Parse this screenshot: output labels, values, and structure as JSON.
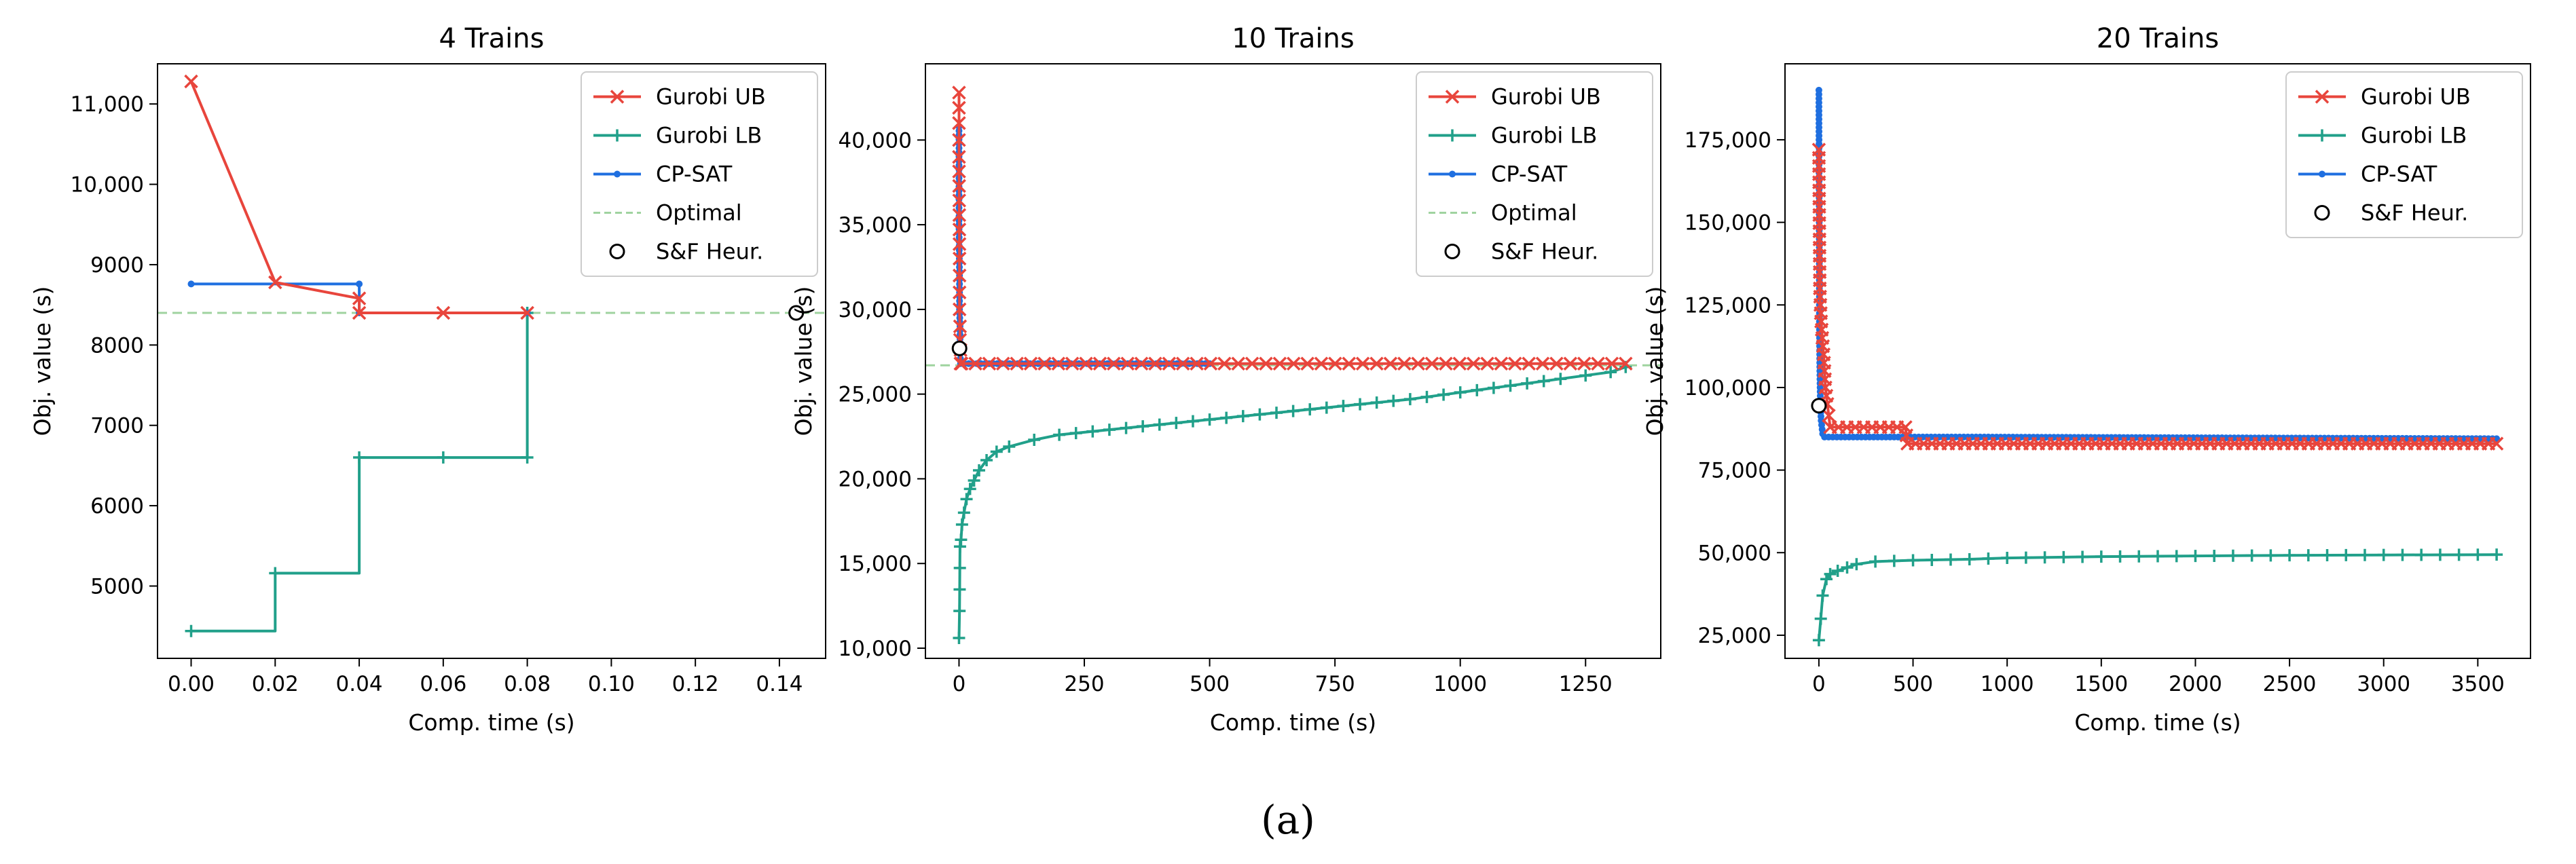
{
  "caption": "(a)",
  "colors": {
    "gurobi_ub": "#e8453c",
    "gurobi_lb": "#21a08a",
    "cp_sat": "#1f6fe0",
    "optimal": "#9fd39f",
    "sf_heur": "#000000"
  },
  "chart_data": [
    {
      "type": "line",
      "title": "4 Trains",
      "xlabel": "Comp. time (s)",
      "ylabel": "Obj. value (s)",
      "xlim": [
        -0.008,
        0.151
      ],
      "ylim": [
        4100,
        11500
      ],
      "xticks": [
        0.0,
        0.02,
        0.04,
        0.06,
        0.08,
        0.1,
        0.12,
        0.14
      ],
      "xtick_labels": [
        "0.00",
        "0.02",
        "0.04",
        "0.06",
        "0.08",
        "0.10",
        "0.12",
        "0.14"
      ],
      "yticks": [
        5000,
        6000,
        7000,
        8000,
        9000,
        10000,
        11000
      ],
      "ytick_labels": [
        "5000",
        "6000",
        "7000",
        "8000",
        "9000",
        "10,000",
        "11,000"
      ],
      "legend": [
        "Gurobi UB",
        "Gurobi LB",
        "CP-SAT",
        "Optimal",
        "S&F Heur."
      ],
      "series": [
        {
          "name": "Gurobi UB",
          "marker": "x",
          "step": false,
          "x": [
            0.0,
            0.02,
            0.04,
            0.04,
            0.06,
            0.08
          ],
          "y": [
            11280,
            8780,
            8580,
            8400,
            8400,
            8400
          ]
        },
        {
          "name": "Gurobi LB",
          "marker": "+",
          "step": true,
          "x": [
            0.0,
            0.02,
            0.04,
            0.06,
            0.08,
            0.08
          ],
          "y": [
            4440,
            5160,
            6600,
            6600,
            6600,
            8400
          ]
        },
        {
          "name": "CP-SAT",
          "marker": ".",
          "step": true,
          "x": [
            0.0,
            0.04,
            0.04,
            0.08
          ],
          "y": [
            8760,
            8760,
            8400,
            8400
          ]
        }
      ],
      "optimal": 8400,
      "heuristic": {
        "x": 0.144,
        "y": 8400
      }
    },
    {
      "type": "line",
      "title": "10 Trains",
      "xlabel": "Comp. time (s)",
      "ylabel": "Obj. value (s)",
      "xlim": [
        -67,
        1400
      ],
      "ylim": [
        9400,
        44500
      ],
      "xticks": [
        0,
        250,
        500,
        750,
        1000,
        1250
      ],
      "xtick_labels": [
        "0",
        "250",
        "500",
        "750",
        "1000",
        "1250"
      ],
      "yticks": [
        10000,
        15000,
        20000,
        25000,
        30000,
        35000,
        40000
      ],
      "ytick_labels": [
        "10,000",
        "15,000",
        "20,000",
        "25,000",
        "30,000",
        "35,000",
        "40,000"
      ],
      "legend": [
        "Gurobi UB",
        "Gurobi LB",
        "CP-SAT",
        "Optimal",
        "S&F Heur."
      ],
      "series": [
        {
          "name": "Gurobi UB",
          "marker": "x",
          "step": false,
          "markevery": 20,
          "x": [
            0,
            0,
            0,
            1,
            1,
            2,
            2,
            3,
            3,
            5,
            1330
          ],
          "y": [
            42800,
            41000,
            39000,
            33000,
            30000,
            29000,
            28200,
            27600,
            26800,
            26800,
            26800
          ]
        },
        {
          "name": "Gurobi LB",
          "marker": "+",
          "step": false,
          "markevery": 24,
          "x": [
            0,
            1,
            2,
            4,
            6,
            10,
            15,
            22,
            30,
            40,
            55,
            75,
            100,
            150,
            200,
            300,
            400,
            500,
            600,
            700,
            800,
            900,
            1000,
            1100,
            1200,
            1250,
            1300,
            1330
          ],
          "y": [
            10600,
            12200,
            16000,
            16400,
            17300,
            18000,
            18800,
            19400,
            19900,
            20500,
            21100,
            21600,
            21900,
            22300,
            22600,
            22900,
            23200,
            23500,
            23800,
            24100,
            24400,
            24700,
            25100,
            25500,
            25900,
            26100,
            26300,
            26600
          ]
        },
        {
          "name": "CP-SAT",
          "marker": ".",
          "step": false,
          "markevery": 6,
          "x": [
            0,
            0,
            0,
            1,
            1,
            2,
            2,
            3,
            500
          ],
          "y": [
            40800,
            38000,
            35000,
            32000,
            30000,
            29000,
            28000,
            26800,
            26800
          ]
        }
      ],
      "optimal": 26700,
      "heuristic": {
        "x": 1,
        "y": 27700
      }
    },
    {
      "type": "line",
      "title": "20 Trains",
      "xlabel": "Comp. time (s)",
      "ylabel": "Obj. value (s)",
      "xlim": [
        -180,
        3780
      ],
      "ylim": [
        18000,
        198000
      ],
      "xticks": [
        0,
        500,
        1000,
        1500,
        2000,
        2500,
        3000,
        3500
      ],
      "xtick_labels": [
        "0",
        "500",
        "1000",
        "1500",
        "2000",
        "2500",
        "3000",
        "3500"
      ],
      "yticks": [
        25000,
        50000,
        75000,
        100000,
        125000,
        150000,
        175000
      ],
      "ytick_labels": [
        "25,000",
        "50,000",
        "75,000",
        "100,000",
        "125,000",
        "150,000",
        "175,000"
      ],
      "legend": [
        "Gurobi UB",
        "Gurobi LB",
        "CP-SAT",
        "S&F Heur."
      ],
      "series": [
        {
          "name": "Gurobi UB",
          "marker": "x",
          "step": false,
          "markevery": 12,
          "x": [
            0,
            5,
            8,
            12,
            18,
            25,
            35,
            45,
            60,
            460,
            470,
            3600
          ],
          "y": [
            172000,
            130000,
            125000,
            120000,
            115000,
            110000,
            100000,
            95000,
            88000,
            88000,
            83000,
            83000
          ]
        },
        {
          "name": "Gurobi LB",
          "marker": "+",
          "step": false,
          "markevery": 24,
          "x": [
            0,
            10,
            20,
            40,
            60,
            100,
            150,
            200,
            300,
            500,
            800,
            1000,
            1500,
            2000,
            2500,
            3000,
            3600
          ],
          "y": [
            23500,
            30000,
            37000,
            42000,
            43500,
            44500,
            45500,
            46500,
            47300,
            47700,
            48000,
            48400,
            48800,
            49000,
            49200,
            49300,
            49400
          ]
        },
        {
          "name": "CP-SAT",
          "marker": ".",
          "step": false,
          "markevery": 6,
          "x": [
            0,
            1,
            2,
            3,
            5,
            8,
            12,
            20,
            30,
            900,
            3600
          ],
          "y": [
            190000,
            165000,
            145000,
            120000,
            105000,
            95000,
            90000,
            86000,
            85000,
            85000,
            84500
          ]
        }
      ],
      "heuristic": {
        "x": 0,
        "y": 94500
      }
    }
  ]
}
